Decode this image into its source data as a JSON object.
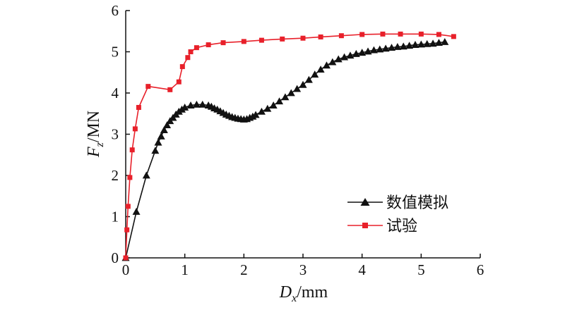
{
  "chart_data": {
    "type": "line",
    "title": "",
    "xlabel_main": "D",
    "xlabel_sub": "x",
    "xlabel_unit": "/mm",
    "ylabel_main": "F",
    "ylabel_sub": "z",
    "ylabel_unit": "/MN",
    "xlim": [
      0,
      6
    ],
    "ylim": [
      0,
      6
    ],
    "xticks": [
      "0",
      "1",
      "2",
      "3",
      "4",
      "5",
      "6"
    ],
    "yticks": [
      "0",
      "1",
      "2",
      "3",
      "4",
      "5",
      "6"
    ],
    "grid": false,
    "legend_position": "bottom-right",
    "series": [
      {
        "name": "数值模拟",
        "color": "#111111",
        "marker": "triangle",
        "x": [
          0,
          0.18,
          0.35,
          0.5,
          0.55,
          0.6,
          0.65,
          0.7,
          0.75,
          0.8,
          0.85,
          0.9,
          0.95,
          1.0,
          1.1,
          1.2,
          1.3,
          1.4,
          1.45,
          1.5,
          1.55,
          1.6,
          1.65,
          1.7,
          1.75,
          1.8,
          1.85,
          1.9,
          1.95,
          2.0,
          2.05,
          2.1,
          2.15,
          2.2,
          2.3,
          2.4,
          2.5,
          2.6,
          2.7,
          2.8,
          2.9,
          3.0,
          3.1,
          3.2,
          3.3,
          3.4,
          3.5,
          3.6,
          3.7,
          3.8,
          3.9,
          4.0,
          4.1,
          4.2,
          4.3,
          4.4,
          4.5,
          4.6,
          4.7,
          4.8,
          4.9,
          5.0,
          5.1,
          5.2,
          5.3,
          5.4
        ],
        "y": [
          0,
          1.12,
          2.0,
          2.6,
          2.8,
          2.95,
          3.1,
          3.22,
          3.32,
          3.4,
          3.48,
          3.55,
          3.6,
          3.65,
          3.7,
          3.72,
          3.72,
          3.7,
          3.67,
          3.63,
          3.6,
          3.56,
          3.52,
          3.48,
          3.45,
          3.42,
          3.4,
          3.38,
          3.37,
          3.36,
          3.37,
          3.4,
          3.43,
          3.47,
          3.55,
          3.62,
          3.7,
          3.8,
          3.9,
          4.0,
          4.1,
          4.2,
          4.32,
          4.45,
          4.57,
          4.67,
          4.75,
          4.82,
          4.87,
          4.91,
          4.95,
          4.98,
          5.01,
          5.04,
          5.06,
          5.08,
          5.1,
          5.12,
          5.13,
          5.15,
          5.17,
          5.18,
          5.19,
          5.2,
          5.22,
          5.24
        ]
      },
      {
        "name": "试验",
        "color": "#e8202a",
        "marker": "square",
        "x": [
          0,
          0.02,
          0.04,
          0.07,
          0.11,
          0.16,
          0.22,
          0.38,
          0.75,
          0.9,
          0.96,
          1.05,
          1.1,
          1.2,
          1.4,
          1.65,
          2.0,
          2.3,
          2.65,
          3.0,
          3.3,
          3.65,
          4.0,
          4.35,
          4.65,
          5.0,
          5.3,
          5.55
        ],
        "y": [
          0,
          0.68,
          1.25,
          1.95,
          2.62,
          3.13,
          3.65,
          4.16,
          4.08,
          4.27,
          4.64,
          4.86,
          5.0,
          5.1,
          5.17,
          5.22,
          5.25,
          5.28,
          5.31,
          5.33,
          5.36,
          5.39,
          5.42,
          5.43,
          5.43,
          5.43,
          5.42,
          5.37
        ]
      }
    ]
  }
}
